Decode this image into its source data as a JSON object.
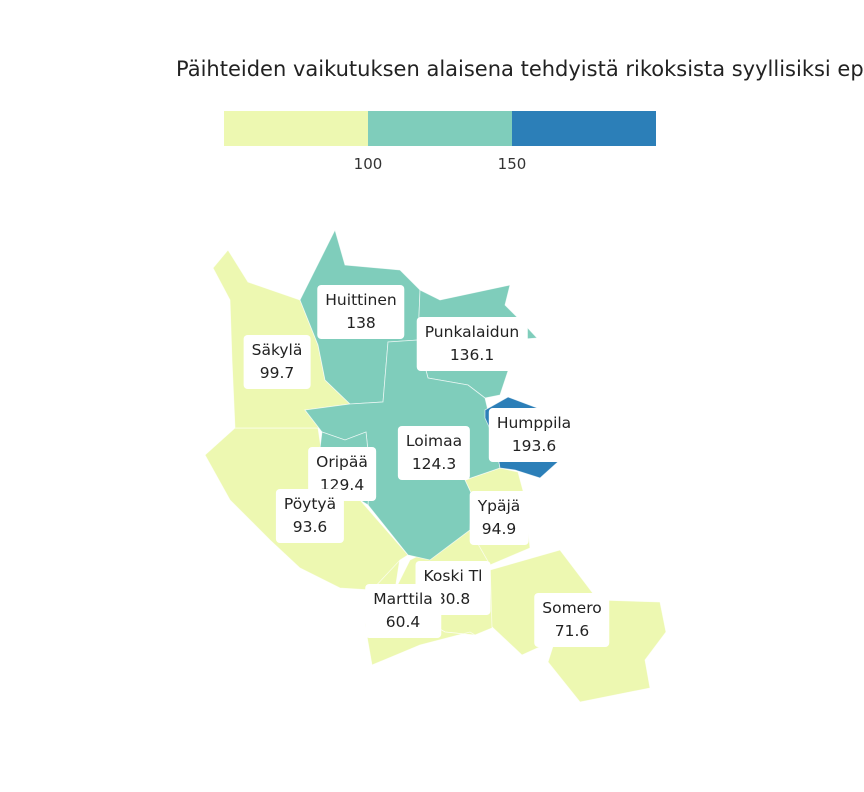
{
  "title": "Päihteiden vaikutuksen alaisena tehdyistä rikoksista syyllisiksi epä",
  "legend": {
    "breaks": [
      "100",
      "150"
    ],
    "colors": [
      "#edf8b1",
      "#7fcdbb",
      "#2c7fb8"
    ]
  },
  "municipalities": [
    {
      "name": "Huittinen",
      "value": "138",
      "color": "#7fcdbb"
    },
    {
      "name": "Punkalaidun",
      "value": "136.1",
      "color": "#7fcdbb"
    },
    {
      "name": "Säkylä",
      "value": "99.7",
      "color": "#edf8b1"
    },
    {
      "name": "Humppila",
      "value": "193.6",
      "color": "#2c7fb8"
    },
    {
      "name": "Loimaa",
      "value": "124.3",
      "color": "#7fcdbb"
    },
    {
      "name": "Oripää",
      "value": "129.4",
      "color": "#7fcdbb"
    },
    {
      "name": "Pöytyä",
      "value": "93.6",
      "color": "#edf8b1"
    },
    {
      "name": "Ypäjä",
      "value": "94.9",
      "color": "#edf8b1"
    },
    {
      "name": "Koski Tl",
      "value": "80.8",
      "color": "#edf8b1"
    },
    {
      "name": "Marttila",
      "value": "60.4",
      "color": "#edf8b1"
    },
    {
      "name": "Somero",
      "value": "71.6",
      "color": "#edf8b1"
    }
  ]
}
